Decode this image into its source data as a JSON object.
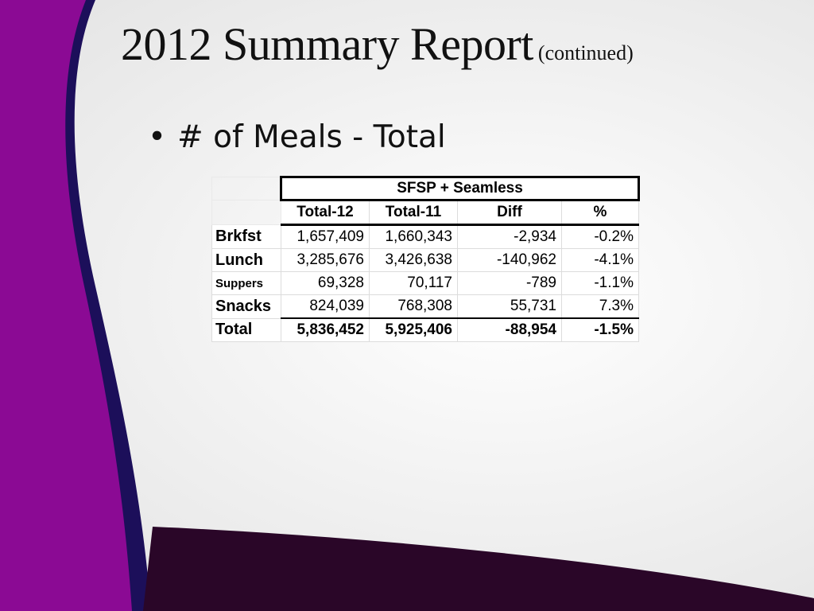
{
  "title": {
    "main": "2012 Summary Report",
    "sub": "(continued)"
  },
  "bullet": {
    "marker": "•",
    "text": "# of Meals  - Total"
  },
  "table": {
    "group_header": "SFSP + Seamless",
    "columns": [
      "Total-12",
      "Total-11",
      "Diff",
      "%"
    ],
    "rows": [
      {
        "label": "Brkfst",
        "values": [
          "1,657,409",
          "1,660,343",
          "-2,934",
          "-0.2%"
        ]
      },
      {
        "label": "Lunch",
        "values": [
          "3,285,676",
          "3,426,638",
          "-140,962",
          "-4.1%"
        ]
      },
      {
        "label": "Suppers",
        "values": [
          "69,328",
          "70,117",
          "-789",
          "-1.1%"
        ]
      },
      {
        "label": "Snacks",
        "values": [
          "824,039",
          "768,308",
          "55,731",
          "7.3%"
        ]
      },
      {
        "label": "Total",
        "values": [
          "5,836,452",
          "5,925,406",
          "-88,954",
          "-1.5%"
        ]
      }
    ]
  },
  "colors": {
    "purple": "#8b0a94",
    "navy": "#1c0f5a",
    "dark_band": "#2a0628",
    "background": "#eeeeee"
  }
}
